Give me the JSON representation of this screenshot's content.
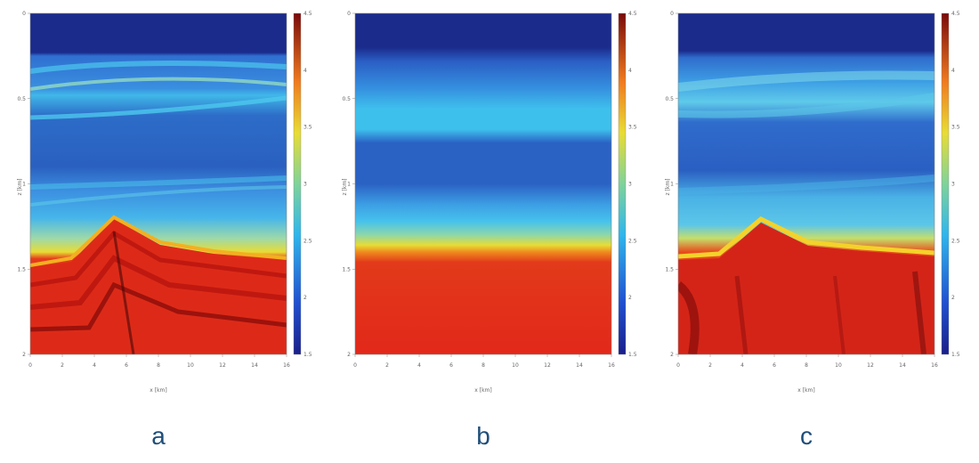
{
  "figure": {
    "label_color": "#1f4e79"
  },
  "panels": [
    {
      "label": "a"
    },
    {
      "label": "b"
    },
    {
      "label": "c"
    }
  ],
  "chart_data": [
    {
      "type": "heatmap",
      "panel": "a",
      "xlabel": "x [km]",
      "ylabel": "z [km]",
      "xlim": [
        0,
        16
      ],
      "ylim": [
        0,
        2
      ],
      "x_ticks": [
        "0",
        "2",
        "4",
        "6",
        "8",
        "10",
        "12",
        "14",
        "16"
      ],
      "y_ticks": [
        "0",
        "0.5",
        "1",
        "1.5",
        "2"
      ],
      "colorbar": {
        "range": [
          1.5,
          4.5
        ],
        "ticks": [
          "1.5",
          "2",
          "2.5",
          "3",
          "3.5",
          "4",
          "4.5"
        ]
      },
      "colormap": "jet",
      "field": "true velocity model: water layer to ~0.3 km, layered low-velocity sediments, high-velocity salt/basement dome peaking near x≈5 km at z≈1.3 km"
    },
    {
      "type": "heatmap",
      "panel": "b",
      "xlabel": "x [km]",
      "ylabel": "z [km]",
      "xlim": [
        0,
        16
      ],
      "ylim": [
        0,
        2
      ],
      "x_ticks": [
        "0",
        "2",
        "4",
        "6",
        "8",
        "10",
        "12",
        "14",
        "16"
      ],
      "y_ticks": [
        "0",
        "0.5",
        "1",
        "1.5",
        "2"
      ],
      "colorbar": {
        "range": [
          1.5,
          4.5
        ],
        "ticks": [
          "1.5",
          "2",
          "2.5",
          "3",
          "3.5",
          "4",
          "4.5"
        ]
      },
      "colormap": "jet",
      "field": "initial 1-D layered model: velocity varies with depth only"
    },
    {
      "type": "heatmap",
      "panel": "c",
      "xlabel": "x [km]",
      "ylabel": "z [km]",
      "xlim": [
        0,
        16
      ],
      "ylim": [
        0,
        2
      ],
      "x_ticks": [
        "0",
        "2",
        "4",
        "6",
        "8",
        "10",
        "12",
        "14",
        "16"
      ],
      "y_ticks": [
        "0",
        "0.5",
        "1",
        "1.5",
        "2"
      ],
      "colorbar": {
        "range": [
          1.5,
          4.5
        ],
        "ticks": [
          "1.5",
          "2",
          "2.5",
          "3",
          "3.5",
          "4",
          "4.5"
        ]
      },
      "colormap": "jet",
      "field": "inverted model: recovers dome structure with smoother, noisier layering"
    }
  ]
}
